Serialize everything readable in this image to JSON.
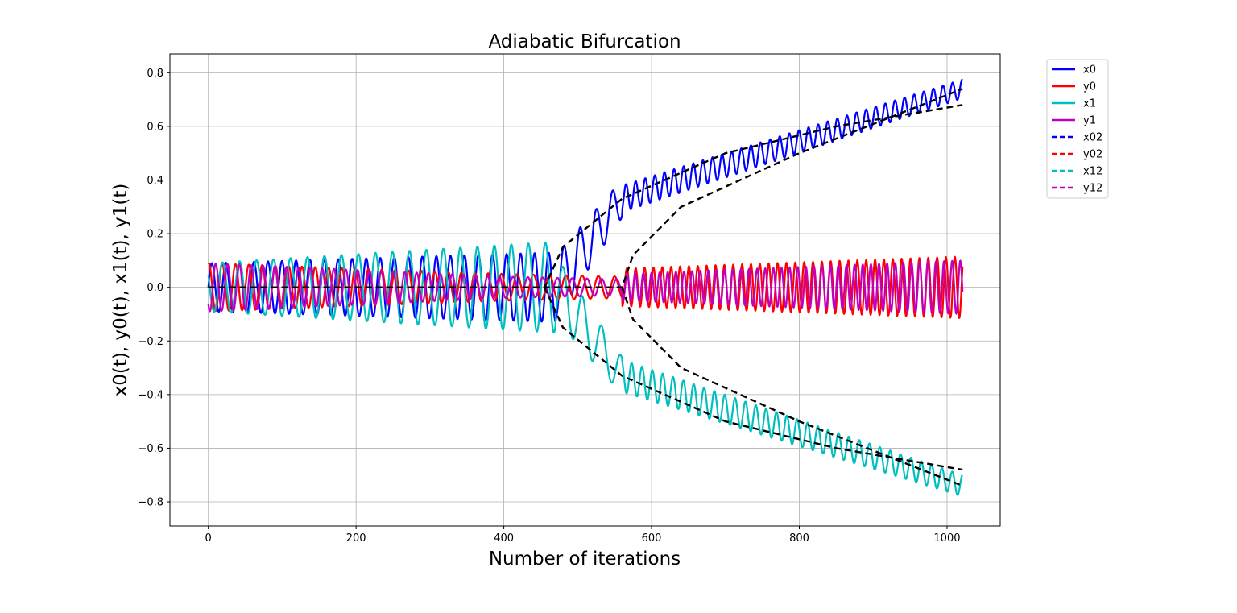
{
  "chart_data": {
    "type": "line",
    "title": "Adiabatic Bifurcation",
    "xlabel": "Number of iterations",
    "ylabel": "x0(t), y0(t), x1(t), y1(t)",
    "xlim": [
      -52,
      1072
    ],
    "ylim": [
      -0.89,
      0.87
    ],
    "x_ticks": [
      0,
      200,
      400,
      600,
      800,
      1000
    ],
    "x_tick_labels": [
      "0",
      "200",
      "400",
      "600",
      "800",
      "1000"
    ],
    "y_ticks": [
      -0.8,
      -0.6,
      -0.4,
      -0.2,
      0.0,
      0.2,
      0.4,
      0.6,
      0.8
    ],
    "y_tick_labels": [
      "−0.8",
      "−0.6",
      "−0.4",
      "−0.2",
      "0.0",
      "0.2",
      "0.4",
      "0.6",
      "0.8"
    ],
    "grid": true,
    "legend_position": "outside-right-top",
    "bifurcation_point": 456,
    "num_iterations": 1021,
    "series": [
      {
        "name": "x0",
        "style": "solid",
        "color": "#0000ff",
        "segments": [
          {
            "x": [
              0,
              470
            ],
            "center": [
              0,
              0
            ],
            "amplitude": [
              0.09,
              0.13
            ],
            "period": 19
          },
          {
            "x": [
              470,
              560
            ],
            "center": [
              0,
              0.33
            ],
            "amplitude": [
              0.12,
              0.07
            ],
            "period": 22
          },
          {
            "x": [
              560,
              1021
            ],
            "center": [
              0.33,
              0.74
            ],
            "amplitude": [
              0.05,
              0.035
            ],
            "period": 13
          }
        ]
      },
      {
        "name": "y0",
        "style": "solid",
        "color": "#ff0000",
        "segments": [
          {
            "x": [
              0,
              400
            ],
            "center": [
              0,
              0
            ],
            "amplitude": [
              0.09,
              0.05
            ],
            "period": 18
          },
          {
            "x": [
              400,
              560
            ],
            "center": [
              0,
              0
            ],
            "amplitude": [
              0.05,
              0.04
            ],
            "period": 22
          },
          {
            "x": [
              560,
              1021
            ],
            "center": [
              0,
              0
            ],
            "amplitude": [
              0.07,
              0.115
            ],
            "period": 12
          }
        ]
      },
      {
        "name": "x1",
        "style": "solid",
        "color": "#00bfbf",
        "segments": [
          {
            "x": [
              0,
              470
            ],
            "center": [
              0,
              0
            ],
            "amplitude": [
              0.09,
              0.17
            ],
            "period": 23
          },
          {
            "x": [
              470,
              560
            ],
            "center": [
              0,
              -0.33
            ],
            "amplitude": [
              0.12,
              0.07
            ],
            "period": 26
          },
          {
            "x": [
              560,
              1021
            ],
            "center": [
              -0.33,
              -0.74
            ],
            "amplitude": [
              0.06,
              0.04
            ],
            "period": 14
          }
        ]
      },
      {
        "name": "y1",
        "style": "solid",
        "color": "#bf00bf",
        "segments": [
          {
            "x": [
              0,
              400
            ],
            "center": [
              0,
              0
            ],
            "amplitude": [
              0.09,
              0.04
            ],
            "period": 16
          },
          {
            "x": [
              400,
              560
            ],
            "center": [
              0,
              0
            ],
            "amplitude": [
              0.04,
              0.03
            ],
            "period": 20
          },
          {
            "x": [
              560,
              1021
            ],
            "center": [
              0,
              0
            ],
            "amplitude": [
              0.05,
              0.1
            ],
            "period": 11
          }
        ]
      },
      {
        "name": "x02",
        "style": "dashed",
        "color": "#0000ff",
        "legend_only": true
      },
      {
        "name": "y02",
        "style": "dashed",
        "color": "#ff0000",
        "legend_only": true
      },
      {
        "name": "x12",
        "style": "dashed",
        "color": "#00bfbf",
        "legend_only": true
      },
      {
        "name": "y12",
        "style": "dashed",
        "color": "#bf00bf",
        "legend_only": true
      }
    ],
    "reference_curves": [
      {
        "color": "#000000",
        "style": "dashed",
        "points": [
          [
            0,
            0
          ],
          [
            455,
            0
          ],
          [
            480,
            0.15
          ],
          [
            560,
            0.33
          ],
          [
            700,
            0.5
          ],
          [
            850,
            0.6
          ],
          [
            1021,
            0.68
          ]
        ]
      },
      {
        "color": "#000000",
        "style": "dashed",
        "points": [
          [
            455,
            0
          ],
          [
            480,
            -0.15
          ],
          [
            560,
            -0.33
          ],
          [
            700,
            -0.5
          ],
          [
            850,
            -0.6
          ],
          [
            1021,
            -0.68
          ]
        ]
      },
      {
        "color": "#000000",
        "style": "dashed",
        "points": [
          [
            0,
            0
          ],
          [
            560,
            0
          ],
          [
            575,
            0.12
          ],
          [
            640,
            0.3
          ],
          [
            800,
            0.5
          ],
          [
            1021,
            0.74
          ]
        ]
      },
      {
        "color": "#000000",
        "style": "dashed",
        "points": [
          [
            560,
            0
          ],
          [
            575,
            -0.12
          ],
          [
            640,
            -0.3
          ],
          [
            800,
            -0.5
          ],
          [
            1021,
            -0.74
          ]
        ]
      }
    ]
  }
}
